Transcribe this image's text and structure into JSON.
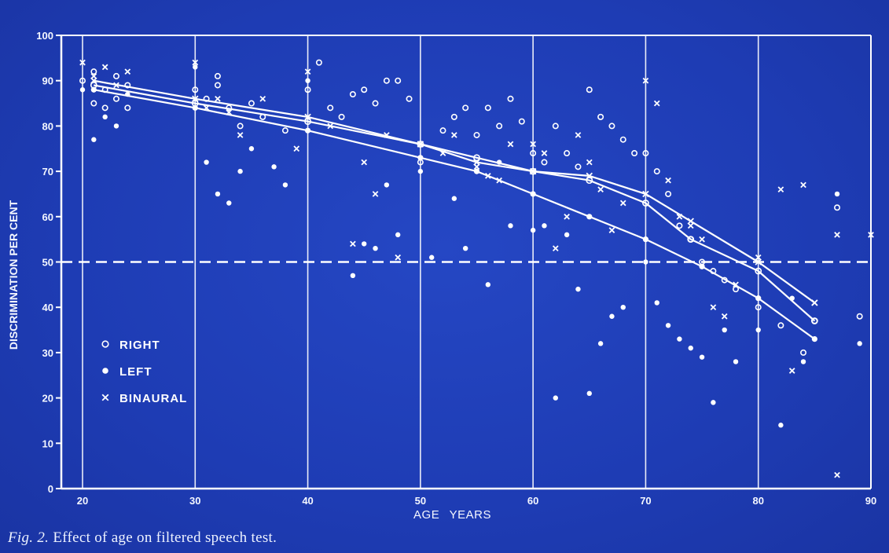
{
  "colors": {
    "background": "#1f3bb0",
    "ink": "#ffffff"
  },
  "caption": {
    "fig": "Fig. 2.",
    "text": "Effect of age on filtered speech test."
  },
  "chart_data": {
    "type": "scatter",
    "xlabel": "AGE  YEARS",
    "ylabel": "DISCRIMINATION PER CENT",
    "xlim": [
      19,
      90
    ],
    "ylim": [
      0,
      100
    ],
    "x_ticks": [
      20,
      30,
      40,
      50,
      60,
      70,
      80,
      90
    ],
    "y_ticks": [
      0,
      10,
      20,
      30,
      40,
      50,
      60,
      70,
      80,
      90,
      100
    ],
    "grid": "vertical lines at every 10 years",
    "reference_line": {
      "y": 50,
      "style": "dashed"
    },
    "legend_position": "lower-left",
    "series": [
      {
        "name": "RIGHT",
        "marker": "open-circle",
        "points": [
          [
            20,
            90
          ],
          [
            21,
            92
          ],
          [
            21,
            85
          ],
          [
            22,
            88
          ],
          [
            22,
            84
          ],
          [
            23,
            91
          ],
          [
            23,
            86
          ],
          [
            24,
            89
          ],
          [
            24,
            84
          ],
          [
            30,
            88
          ],
          [
            31,
            86
          ],
          [
            32,
            91
          ],
          [
            32,
            89
          ],
          [
            33,
            84
          ],
          [
            34,
            80
          ],
          [
            35,
            85
          ],
          [
            36,
            82
          ],
          [
            38,
            79
          ],
          [
            40,
            88
          ],
          [
            41,
            94
          ],
          [
            42,
            84
          ],
          [
            43,
            82
          ],
          [
            44,
            87
          ],
          [
            45,
            88
          ],
          [
            46,
            85
          ],
          [
            47,
            90
          ],
          [
            48,
            90
          ],
          [
            49,
            86
          ],
          [
            50,
            72
          ],
          [
            52,
            79
          ],
          [
            53,
            82
          ],
          [
            54,
            84
          ],
          [
            55,
            78
          ],
          [
            56,
            84
          ],
          [
            57,
            80
          ],
          [
            58,
            86
          ],
          [
            59,
            81
          ],
          [
            60,
            74
          ],
          [
            61,
            72
          ],
          [
            62,
            80
          ],
          [
            63,
            74
          ],
          [
            64,
            71
          ],
          [
            65,
            88
          ],
          [
            66,
            82
          ],
          [
            67,
            80
          ],
          [
            68,
            77
          ],
          [
            69,
            74
          ],
          [
            70,
            74
          ],
          [
            71,
            70
          ],
          [
            72,
            65
          ],
          [
            73,
            58
          ],
          [
            74,
            55
          ],
          [
            75,
            50
          ],
          [
            76,
            48
          ],
          [
            77,
            46
          ],
          [
            78,
            44
          ],
          [
            80,
            40
          ],
          [
            82,
            36
          ],
          [
            84,
            30
          ],
          [
            85,
            37
          ],
          [
            87,
            62
          ],
          [
            89,
            38
          ]
        ],
        "trend": [
          [
            21,
            89
          ],
          [
            30,
            85
          ],
          [
            40,
            81
          ],
          [
            50,
            76
          ],
          [
            55,
            73
          ],
          [
            60,
            70
          ],
          [
            65,
            68
          ],
          [
            70,
            63
          ],
          [
            74,
            55
          ],
          [
            80,
            48
          ],
          [
            85,
            37
          ]
        ]
      },
      {
        "name": "LEFT",
        "marker": "filled-circle",
        "points": [
          [
            20,
            88
          ],
          [
            21,
            77
          ],
          [
            22,
            82
          ],
          [
            23,
            80
          ],
          [
            24,
            87
          ],
          [
            30,
            93
          ],
          [
            31,
            72
          ],
          [
            32,
            65
          ],
          [
            33,
            63
          ],
          [
            34,
            70
          ],
          [
            35,
            75
          ],
          [
            37,
            71
          ],
          [
            38,
            67
          ],
          [
            40,
            90
          ],
          [
            44,
            47
          ],
          [
            45,
            54
          ],
          [
            46,
            53
          ],
          [
            47,
            67
          ],
          [
            48,
            56
          ],
          [
            50,
            70
          ],
          [
            51,
            51
          ],
          [
            53,
            64
          ],
          [
            54,
            53
          ],
          [
            56,
            45
          ],
          [
            57,
            72
          ],
          [
            58,
            58
          ],
          [
            60,
            57
          ],
          [
            61,
            58
          ],
          [
            62,
            20
          ],
          [
            63,
            56
          ],
          [
            64,
            44
          ],
          [
            65,
            21
          ],
          [
            66,
            32
          ],
          [
            67,
            38
          ],
          [
            68,
            40
          ],
          [
            70,
            50
          ],
          [
            71,
            41
          ],
          [
            72,
            36
          ],
          [
            73,
            33
          ],
          [
            74,
            31
          ],
          [
            75,
            29
          ],
          [
            76,
            19
          ],
          [
            77,
            35
          ],
          [
            78,
            28
          ],
          [
            80,
            35
          ],
          [
            82,
            14
          ],
          [
            83,
            42
          ],
          [
            84,
            28
          ],
          [
            85,
            33
          ],
          [
            87,
            65
          ],
          [
            89,
            32
          ]
        ],
        "trend": [
          [
            21,
            88
          ],
          [
            30,
            84
          ],
          [
            40,
            79
          ],
          [
            50,
            73
          ],
          [
            55,
            70
          ],
          [
            60,
            65
          ],
          [
            65,
            60
          ],
          [
            70,
            55
          ],
          [
            75,
            49
          ],
          [
            80,
            42
          ],
          [
            85,
            33
          ]
        ]
      },
      {
        "name": "BINAURAL",
        "marker": "cross",
        "points": [
          [
            20,
            94
          ],
          [
            21,
            91
          ],
          [
            22,
            93
          ],
          [
            23,
            89
          ],
          [
            24,
            92
          ],
          [
            30,
            94
          ],
          [
            31,
            84
          ],
          [
            32,
            86
          ],
          [
            33,
            83
          ],
          [
            34,
            78
          ],
          [
            36,
            86
          ],
          [
            39,
            75
          ],
          [
            40,
            92
          ],
          [
            42,
            80
          ],
          [
            44,
            54
          ],
          [
            45,
            72
          ],
          [
            46,
            65
          ],
          [
            47,
            78
          ],
          [
            48,
            51
          ],
          [
            50,
            76
          ],
          [
            52,
            74
          ],
          [
            53,
            78
          ],
          [
            55,
            71
          ],
          [
            56,
            69
          ],
          [
            57,
            68
          ],
          [
            58,
            76
          ],
          [
            60,
            76
          ],
          [
            61,
            74
          ],
          [
            62,
            53
          ],
          [
            63,
            60
          ],
          [
            64,
            78
          ],
          [
            65,
            72
          ],
          [
            66,
            66
          ],
          [
            67,
            57
          ],
          [
            68,
            63
          ],
          [
            70,
            90
          ],
          [
            71,
            85
          ],
          [
            72,
            68
          ],
          [
            73,
            60
          ],
          [
            74,
            58
          ],
          [
            75,
            55
          ],
          [
            76,
            40
          ],
          [
            77,
            38
          ],
          [
            78,
            45
          ],
          [
            80,
            51
          ],
          [
            82,
            66
          ],
          [
            83,
            26
          ],
          [
            84,
            67
          ],
          [
            85,
            41
          ],
          [
            87,
            56
          ],
          [
            87,
            3
          ],
          [
            90,
            56
          ]
        ],
        "trend": [
          [
            21,
            90
          ],
          [
            30,
            86
          ],
          [
            40,
            82
          ],
          [
            50,
            76
          ],
          [
            55,
            72
          ],
          [
            60,
            70
          ],
          [
            65,
            69
          ],
          [
            70,
            65
          ],
          [
            74,
            59
          ],
          [
            80,
            50
          ],
          [
            85,
            41
          ]
        ]
      }
    ]
  }
}
